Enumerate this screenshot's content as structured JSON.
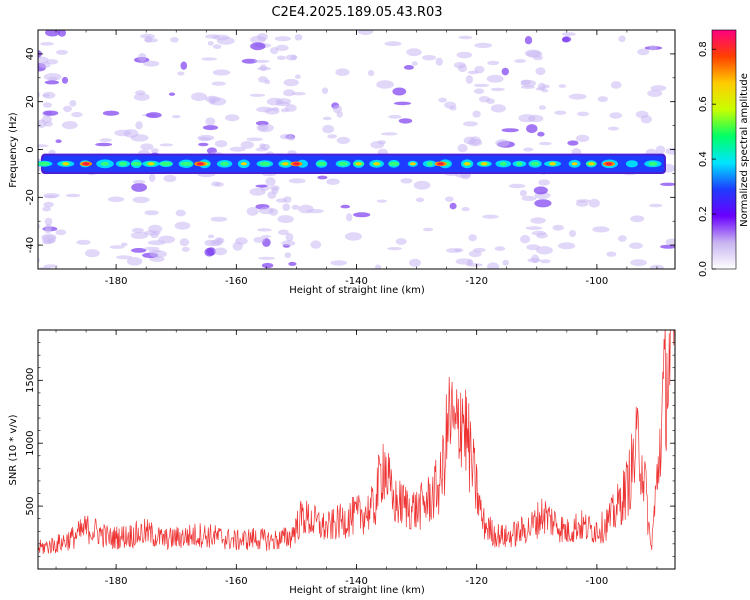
{
  "figure": {
    "title": "C2E4.2025.189.05.43.R03"
  },
  "chart_data": [
    {
      "type": "heatmap",
      "xlabel": "Height of straight line (km)",
      "ylabel": "Frequency (Hz)",
      "xlim": [
        -193,
        -87
      ],
      "ylim": [
        -50,
        50
      ],
      "xticks": [
        "-180",
        "-160",
        "-140",
        "-120",
        "-100"
      ],
      "yticks": [
        "-40",
        "-20",
        "0",
        "20",
        "40"
      ],
      "colorbar": {
        "label": "Normalized spectral amplitude",
        "range": [
          0,
          0.87
        ],
        "ticks": [
          "0.0",
          "0.2",
          "0.4",
          "0.6",
          "0.8"
        ],
        "colors": [
          "#ffffff",
          "#c8b4f0",
          "#6a00ff",
          "#1e3cff",
          "#00e5ff",
          "#00ff66",
          "#c8ff00",
          "#ffcc00",
          "#ff4000",
          "#ff0080"
        ]
      },
      "band": {
        "center_frequency": -6,
        "half_width": 3,
        "peak_heights": [
          -185,
          -166,
          -150,
          -126,
          -98
        ]
      },
      "noise_columns_km": [
        -192,
        -175,
        -164,
        -155,
        -151,
        -121,
        -110
      ]
    },
    {
      "type": "line",
      "xlabel": "Height of straight line (km)",
      "ylabel": "SNR (10 * v/v)",
      "xlim": [
        -193,
        -87
      ],
      "ylim": [
        0,
        1900
      ],
      "xticks": [
        "-180",
        "-160",
        "-140",
        "-120",
        "-100"
      ],
      "yticks": [
        "500",
        "1000",
        "1500"
      ],
      "series": [
        {
          "color": "#ee3333",
          "x": [
            -193,
            -190,
            -187,
            -185,
            -183,
            -181,
            -178,
            -175,
            -172,
            -169,
            -166,
            -163,
            -160,
            -157,
            -154,
            -151,
            -149,
            -147,
            -145,
            -143,
            -141,
            -139,
            -137,
            -135.5,
            -134,
            -132,
            -130,
            -128,
            -126,
            -124.5,
            -123.5,
            -122.5,
            -121,
            -119,
            -117,
            -115,
            -113,
            -111,
            -109,
            -107,
            -105,
            -103,
            -101,
            -99,
            -97,
            -95,
            -93,
            -92,
            -91,
            -90,
            -89,
            -88.5,
            -88,
            -87.5
          ],
          "values": [
            170,
            200,
            260,
            330,
            300,
            250,
            270,
            300,
            240,
            260,
            280,
            260,
            230,
            250,
            230,
            260,
            430,
            380,
            330,
            380,
            420,
            450,
            500,
            900,
            550,
            520,
            480,
            560,
            700,
            1250,
            1080,
            1320,
            900,
            380,
            280,
            260,
            300,
            340,
            450,
            380,
            300,
            360,
            320,
            340,
            460,
            660,
            1050,
            700,
            150,
            700,
            1350,
            1550,
            1650,
            1850
          ]
        }
      ]
    }
  ]
}
